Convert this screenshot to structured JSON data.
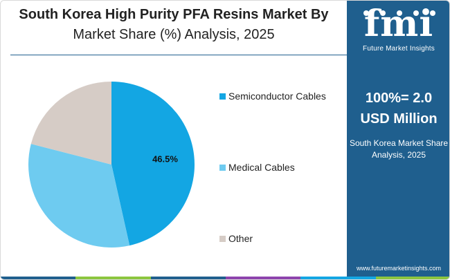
{
  "header": {
    "title_line1": "South Korea High Purity PFA Resins Market By",
    "title_line2": "Market Share (%) Analysis, 2025"
  },
  "chart_data": {
    "type": "pie",
    "categories": [
      "Semiconductor Cables",
      "Medical Cables",
      "Other"
    ],
    "values": [
      46.5,
      32.5,
      21.0
    ],
    "colors": [
      "#13a6e3",
      "#6ecbf0",
      "#d6ccc6"
    ],
    "data_labels": [
      "46.5%",
      "",
      ""
    ],
    "legend_position": "right",
    "start_angle_deg": 0,
    "direction": "clockwise"
  },
  "sidebar": {
    "logo_mark": "fmi",
    "logo_text": "Future Market Insights",
    "total_value": "100%= 2.0",
    "total_unit": "USD Million",
    "subtitle_line1": "South Korea Market Share",
    "subtitle_line2": "Analysis, 2025",
    "url": "www.futuremarketinsights.com",
    "background": "#1f5f8e"
  },
  "bottom_bar_colors": [
    "#1f5f8e",
    "#8cc63f",
    "#1f5f8e",
    "#8e44ad",
    "#13a6e3",
    "#8cc63f"
  ]
}
